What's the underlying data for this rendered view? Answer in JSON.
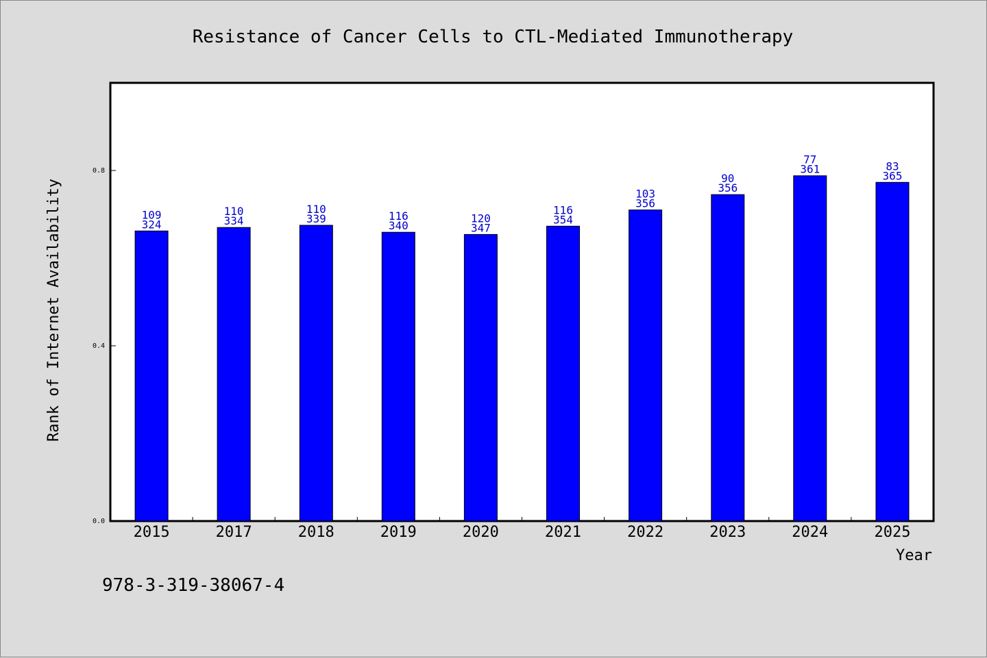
{
  "chart_data": {
    "type": "bar",
    "title": "Resistance of Cancer Cells to CTL-Mediated Immunotherapy",
    "xlabel": "Year",
    "ylabel": "Rank of Internet Availability",
    "categories": [
      "2015",
      "2017",
      "2018",
      "2019",
      "2020",
      "2021",
      "2022",
      "2023",
      "2024",
      "2025"
    ],
    "values": [
      0.662,
      0.67,
      0.675,
      0.659,
      0.654,
      0.673,
      0.71,
      0.745,
      0.788,
      0.773
    ],
    "bar_labels_top": [
      "109",
      "110",
      "110",
      "116",
      "120",
      "116",
      "103",
      "90",
      "77",
      "83"
    ],
    "bar_labels_bottom": [
      "324",
      "334",
      "339",
      "340",
      "347",
      "354",
      "356",
      "356",
      "361",
      "365"
    ],
    "ylim": [
      0.0,
      1.0
    ],
    "yticks": [
      0.0,
      0.4,
      0.8
    ],
    "ytick_labels": [
      "0.0",
      "0.4",
      "0.8"
    ],
    "grid": false,
    "bar_color": "#0000ff",
    "label_color": "#0000cc"
  },
  "footer_text": "978-3-319-38067-4"
}
